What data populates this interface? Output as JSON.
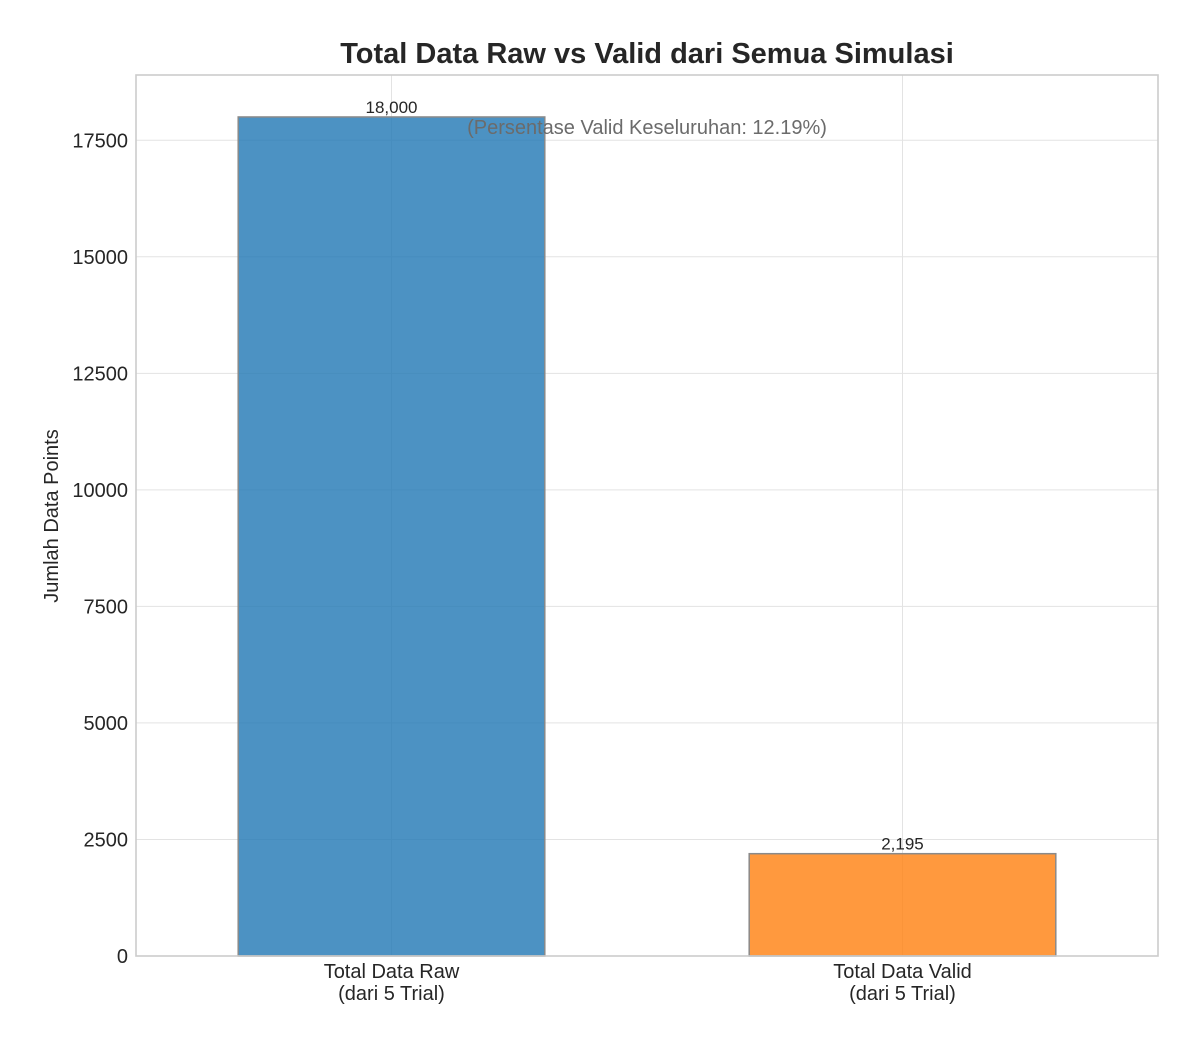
{
  "chart_data": {
    "type": "bar",
    "title": "Total Data Raw vs Valid dari Semua Simulasi",
    "xlabel": "",
    "ylabel": "Jumlah Data Points",
    "categories": [
      [
        "Total Data Raw",
        "(dari 5 Trial)"
      ],
      [
        "Total Data Valid",
        "(dari 5 Trial)"
      ]
    ],
    "values": [
      18000,
      2195
    ],
    "value_labels": [
      "18,000",
      "2,195"
    ],
    "colors": [
      "#1f77b4",
      "#ff7f0e"
    ],
    "yticks": [
      0,
      2500,
      5000,
      7500,
      10000,
      12500,
      15000,
      17500
    ],
    "ylim": [
      0,
      18900
    ],
    "grid": true,
    "annotation": "(Persentase Valid Keseluruhan: 12.19%)"
  }
}
